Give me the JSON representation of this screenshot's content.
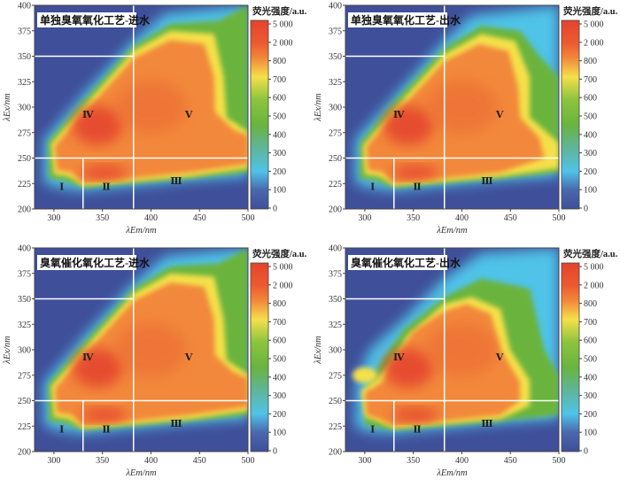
{
  "chart_data": [
    {
      "type": "heatmap",
      "title": "单独臭氧氧化工艺-进水",
      "xlabel": "λEm/nm",
      "ylabel": "λEx/nm",
      "xlim": [
        280,
        500
      ],
      "ylim": [
        200,
        400
      ],
      "xticks": [
        300,
        350,
        400,
        450,
        500
      ],
      "yticks": [
        200,
        225,
        250,
        275,
        300,
        325,
        350,
        375,
        400
      ],
      "variant": "in"
    },
    {
      "type": "heatmap",
      "title": "单独臭氧氧化工艺-出水",
      "xlabel": "λEm/nm",
      "ylabel": "λEx/nm",
      "xlim": [
        280,
        500
      ],
      "ylim": [
        200,
        400
      ],
      "xticks": [
        300,
        350,
        400,
        450,
        500
      ],
      "yticks": [
        200,
        225,
        250,
        275,
        300,
        325,
        350,
        375,
        400
      ],
      "variant": "out1"
    },
    {
      "type": "heatmap",
      "title": "臭氧催化氧化工艺-进水",
      "xlabel": "λEm/nm",
      "ylabel": "λEx/nm",
      "xlim": [
        280,
        500
      ],
      "ylim": [
        200,
        400
      ],
      "xticks": [
        300,
        350,
        400,
        450,
        500
      ],
      "yticks": [
        200,
        225,
        250,
        275,
        300,
        325,
        350,
        375,
        400
      ],
      "variant": "in"
    },
    {
      "type": "heatmap",
      "title": "臭氧催化氧化工艺-出水",
      "xlabel": "λEm/nm",
      "ylabel": "λEx/nm",
      "xlim": [
        280,
        500
      ],
      "ylim": [
        200,
        400
      ],
      "xticks": [
        300,
        350,
        400,
        450,
        500
      ],
      "yticks": [
        200,
        225,
        250,
        275,
        300,
        325,
        350,
        375,
        400
      ],
      "variant": "out2"
    }
  ],
  "colorbar": {
    "title": "荧光强度/a.u.",
    "ticks": [
      "5 000",
      "2 000",
      "800",
      "700",
      "600",
      "500",
      "400",
      "300",
      "200",
      "100",
      "0"
    ]
  },
  "regions": [
    {
      "label": "Ⅰ",
      "em": 308,
      "ex": 222
    },
    {
      "label": "Ⅱ",
      "em": 354,
      "ex": 222
    },
    {
      "label": "Ⅲ",
      "em": 426,
      "ex": 228
    },
    {
      "label": "Ⅳ",
      "em": 335,
      "ex": 293
    },
    {
      "label": "Ⅴ",
      "em": 439,
      "ex": 293
    }
  ],
  "divider_lines": {
    "em_vertical": [
      330,
      382
    ],
    "ex_horizontal": [
      250,
      350
    ]
  },
  "colors": {
    "low": "#3f4f9a",
    "cyan": "#4fc3e8",
    "green": "#6ab43e",
    "yellow": "#f5e04a",
    "orange": "#f2883a",
    "red": "#e4432e"
  }
}
